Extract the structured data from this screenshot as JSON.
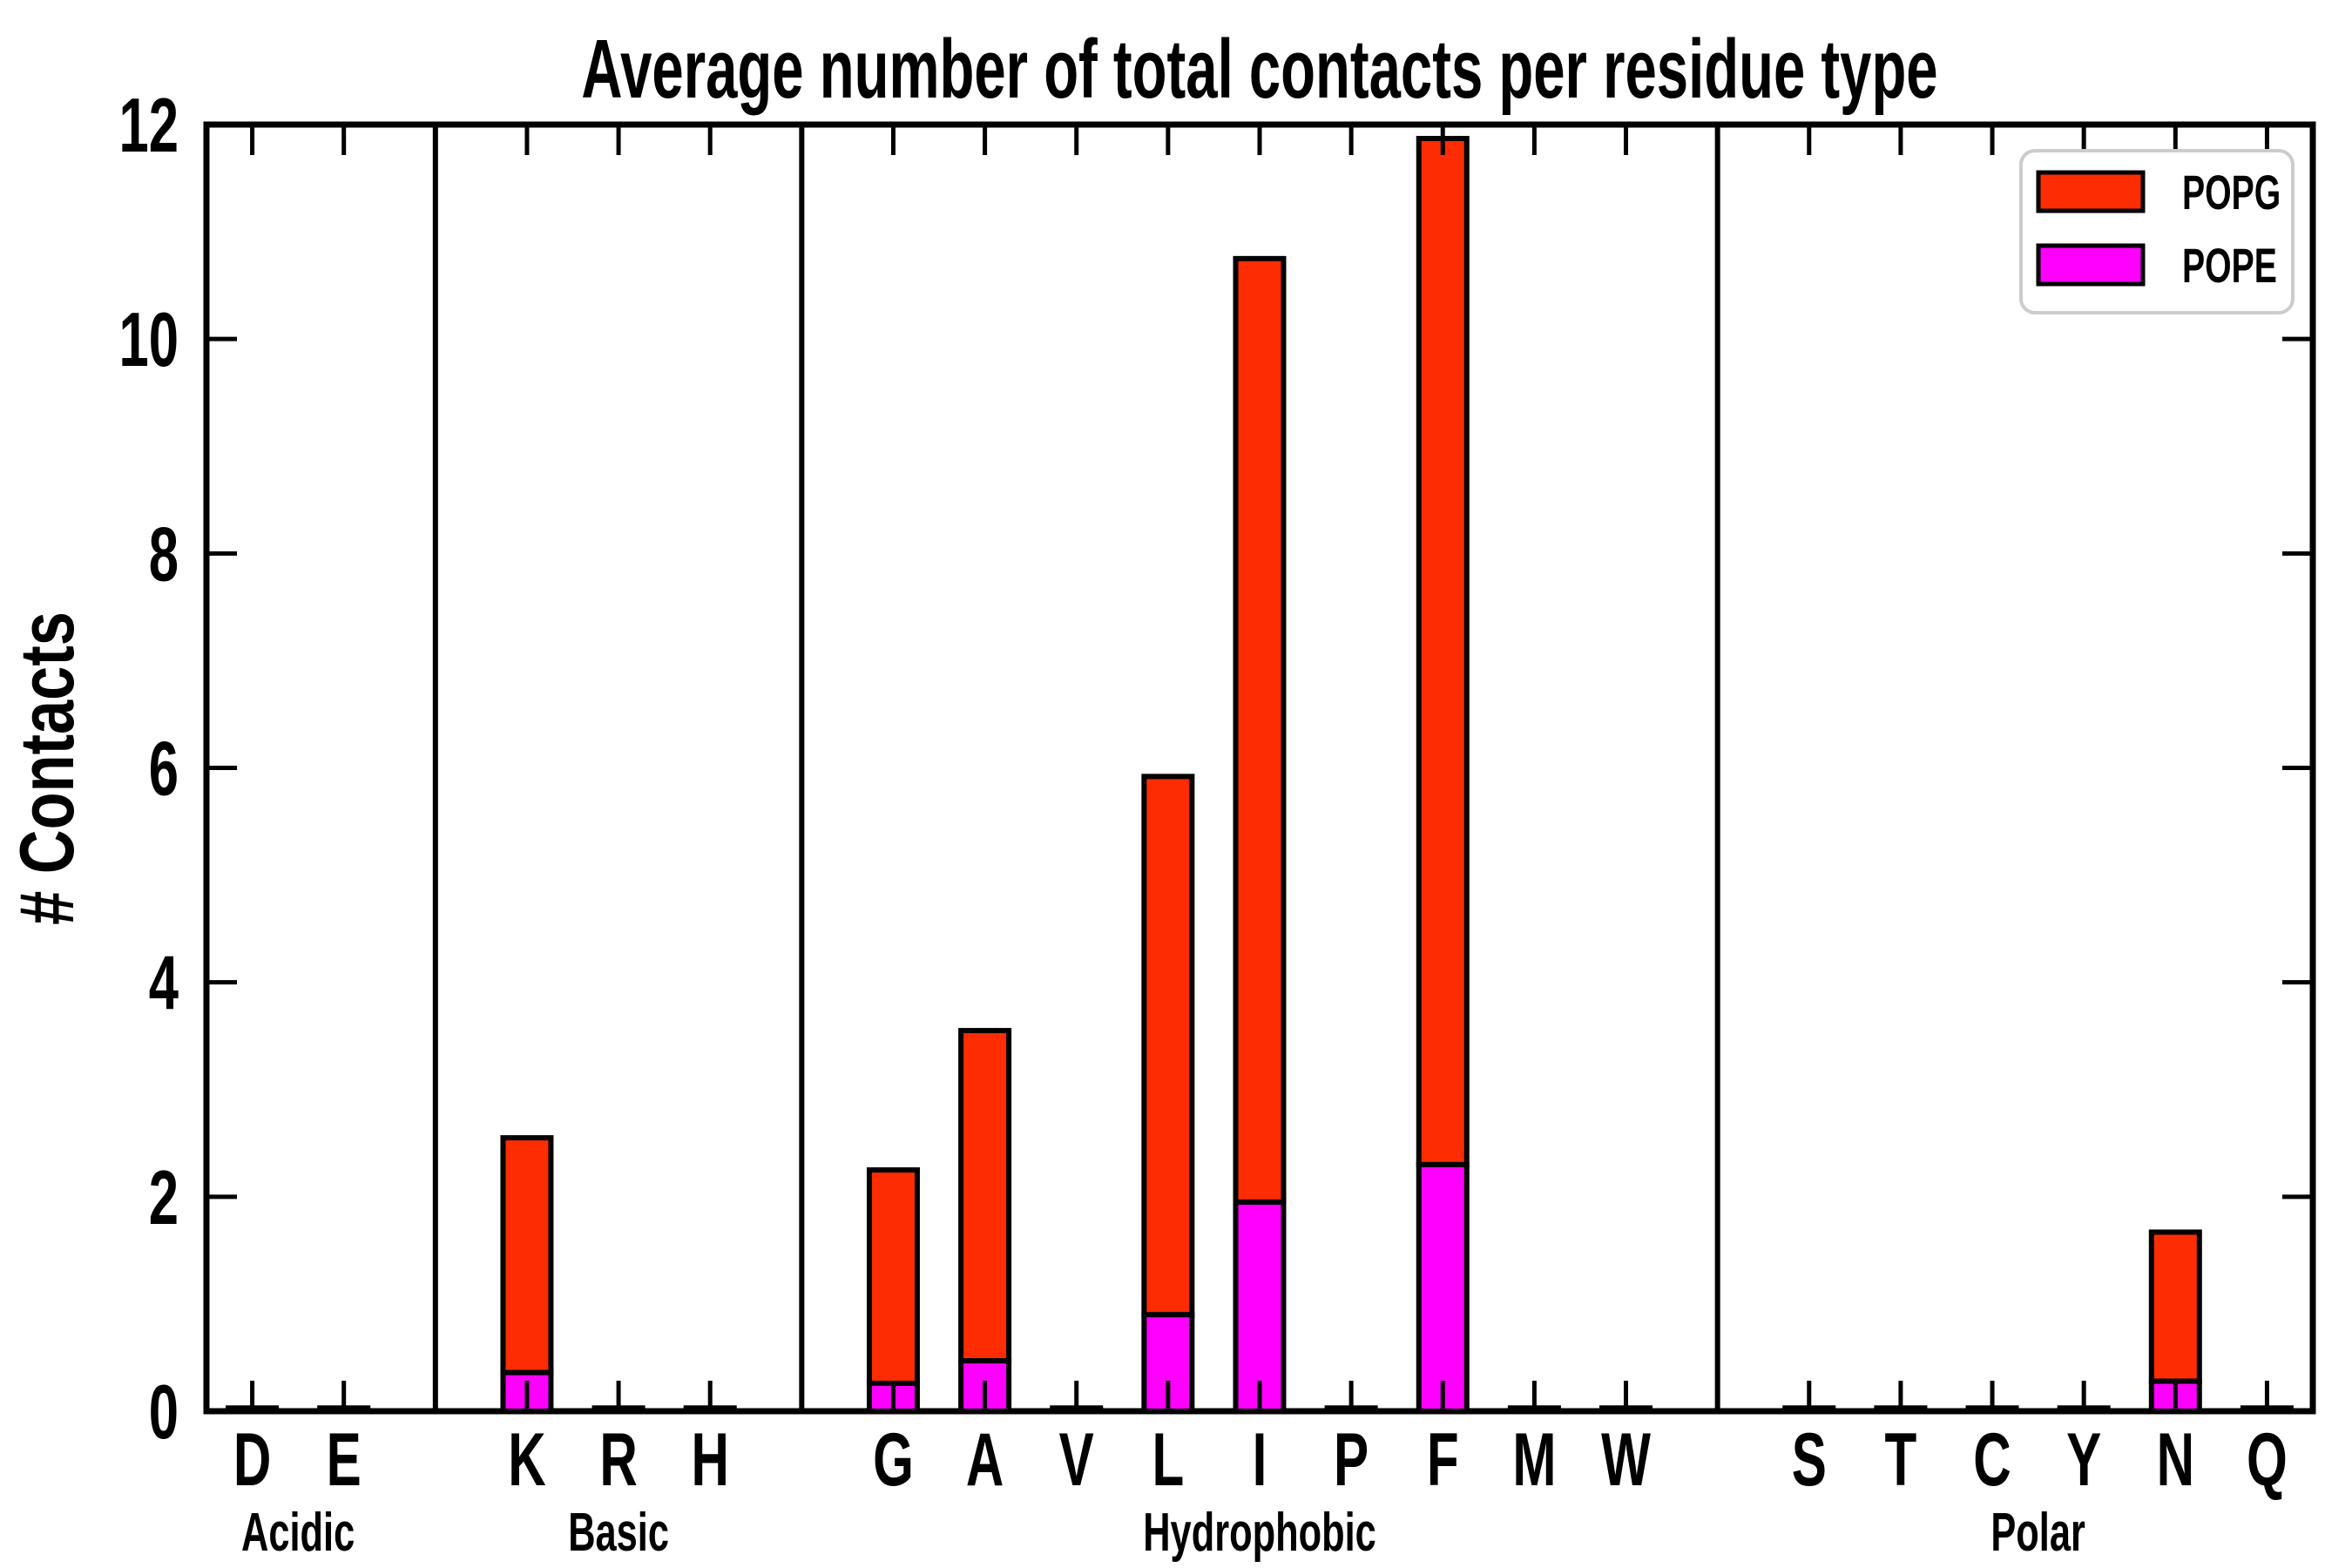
{
  "chart_data": {
    "type": "bar",
    "stacked": true,
    "title": "Average number of total contacts per residue type",
    "ylabel": "# Contacts",
    "xlabel": "",
    "ylim": [
      0,
      12
    ],
    "yticks": [
      0,
      2,
      4,
      6,
      8,
      10,
      12
    ],
    "grid": false,
    "legend_position": "upper right",
    "background_color": "#ffffff",
    "axis_color": "#000000",
    "bar_edge_color": "#000000",
    "legend_border_color": "#cccccc",
    "groups": [
      {
        "label": "Acidic",
        "categories": [
          "D",
          "E"
        ]
      },
      {
        "label": "Basic",
        "categories": [
          "K",
          "R",
          "H"
        ]
      },
      {
        "label": "Hydrophobic",
        "categories": [
          "G",
          "A",
          "V",
          "L",
          "I",
          "P",
          "F",
          "M",
          "W"
        ]
      },
      {
        "label": "Polar",
        "categories": [
          "S",
          "T",
          "C",
          "Y",
          "N",
          "Q"
        ]
      }
    ],
    "categories": [
      "D",
      "E",
      "K",
      "R",
      "H",
      "G",
      "A",
      "V",
      "L",
      "I",
      "P",
      "F",
      "M",
      "W",
      "S",
      "T",
      "C",
      "Y",
      "N",
      "Q"
    ],
    "series": [
      {
        "name": "POPG",
        "color": "#fd2c02",
        "values": [
          0.02,
          0.02,
          2.19,
          0.02,
          0.02,
          1.99,
          3.08,
          0.02,
          5.02,
          8.8,
          0.02,
          9.57,
          0.02,
          0.02,
          0.02,
          0.02,
          0.02,
          0.02,
          1.39,
          0.02
        ]
      },
      {
        "name": "POPE",
        "color": "#ff00ff",
        "values": [
          0.01,
          0.01,
          0.36,
          0.01,
          0.01,
          0.26,
          0.47,
          0.01,
          0.9,
          1.95,
          0.01,
          2.3,
          0.01,
          0.01,
          0.01,
          0.01,
          0.01,
          0.01,
          0.28,
          0.01
        ]
      }
    ],
    "stacked_totals": {
      "K": 2.55,
      "G": 2.25,
      "A": 3.55,
      "L": 5.92,
      "I": 10.75,
      "F": 11.87,
      "N": 1.67
    }
  }
}
